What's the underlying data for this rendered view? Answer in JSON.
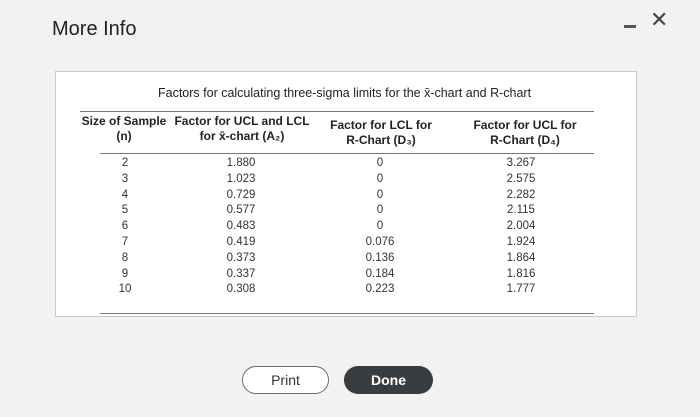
{
  "dialog": {
    "title": "More Info",
    "minimize_icon": "minimize-icon",
    "close_glyph": "✕"
  },
  "table": {
    "caption": "Factors for calculating three-sigma limits for the x̄-chart and R-chart",
    "headers": {
      "col1_line1": "Size of Sample",
      "col1_line2": "(n)",
      "col2_line1": "Factor for UCL and LCL",
      "col2_line2": "for x̄-chart (A₂)",
      "col3_line1": "Factor for LCL for",
      "col3_line2": "R-Chart (D₃)",
      "col4_line1": "Factor for UCL for",
      "col4_line2": "R-Chart (D₄)"
    },
    "rows": [
      {
        "n": "2",
        "a2": "1.880",
        "d3": "0",
        "d4": "3.267"
      },
      {
        "n": "3",
        "a2": "1.023",
        "d3": "0",
        "d4": "2.575"
      },
      {
        "n": "4",
        "a2": "0.729",
        "d3": "0",
        "d4": "2.282"
      },
      {
        "n": "5",
        "a2": "0.577",
        "d3": "0",
        "d4": "2.115"
      },
      {
        "n": "6",
        "a2": "0.483",
        "d3": "0",
        "d4": "2.004"
      },
      {
        "n": "7",
        "a2": "0.419",
        "d3": "0.076",
        "d4": "1.924"
      },
      {
        "n": "8",
        "a2": "0.373",
        "d3": "0.136",
        "d4": "1.864"
      },
      {
        "n": "9",
        "a2": "0.337",
        "d3": "0.184",
        "d4": "1.816"
      },
      {
        "n": "10",
        "a2": "0.308",
        "d3": "0.223",
        "d4": "1.777"
      }
    ]
  },
  "buttons": {
    "print": "Print",
    "done": "Done"
  },
  "colors": {
    "done_bg": "#3a3d3f",
    "panel_bg": "#ffffff",
    "page_bg": "#f2f2f2"
  }
}
